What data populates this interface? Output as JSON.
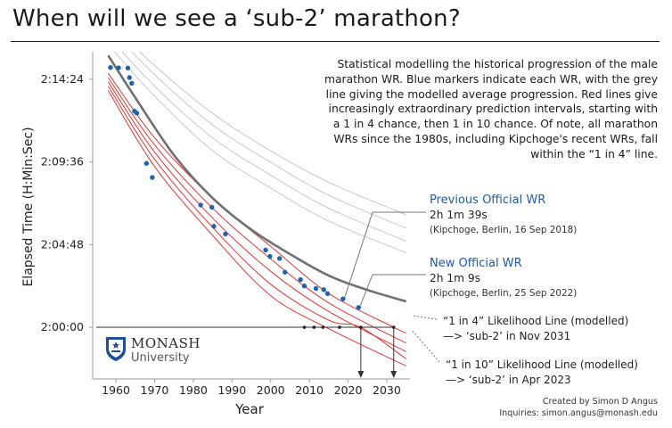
{
  "title": "When will we see a ‘sub-2’ marathon?",
  "description": "Statistical modelling the historical progression of the male marathon WR. Blue markers indicate each WR, with the grey line giving the modelled average progression. Red lines give increasingly extraordinary prediction intervals, starting with a 1 in 4 chance, then 1 in 10 chance. Of note, all marathon WRs since the 1980s, including Kipchoge's recent WRs, fall within the “1 in 4” line.",
  "annotations": {
    "previous": {
      "title": "Previous Official WR",
      "time": "2h 1m 39s",
      "detail": "(Kipchoge, Berlin, 16 Sep 2018)"
    },
    "new": {
      "title": "New Official WR",
      "time": "2h 1m 9s",
      "detail": "(Kipchoge, Berlin, 25 Sep 2022)"
    },
    "one_in_four": {
      "line1": "“1 in 4” Likelihood Line (modelled)",
      "line2": "—> ‘sub-2’ in Nov 2031"
    },
    "one_in_ten": {
      "line1": "“1 in 10” Likelihood Line (modelled)",
      "line2": "—> ‘sub-2’ in Apr 2023"
    }
  },
  "logo": {
    "name": "MONASH",
    "sub": "University"
  },
  "credits": {
    "line1": "Created by Simon D Angus",
    "line2": "Inquiries: simon.angus@monash.edu"
  },
  "colors": {
    "wr": "#1f63b0",
    "mean": "#707070",
    "upper": "#c8c8c8",
    "lower": "#d93a36",
    "axis": "#999999"
  },
  "chart_data": {
    "type": "scatter",
    "title": "When will we see a ‘sub-2’ marathon?",
    "xlabel": "Year",
    "ylabel": "Elapsed Time (H:Min:Sec)",
    "xlim": [
      1954,
      2036
    ],
    "ylim_seconds": [
      7020,
      8160
    ],
    "x_ticks": [
      1960,
      1970,
      1980,
      1990,
      2000,
      2010,
      2020,
      2030
    ],
    "y_ticks": [
      {
        "value": 7200,
        "label": "2:00:00"
      },
      {
        "value": 7488,
        "label": "2:04:48"
      },
      {
        "value": 7776,
        "label": "2:09:36"
      },
      {
        "value": 8064,
        "label": "2:14:24"
      }
    ],
    "world_records": [
      {
        "year": 1958.6,
        "time_s": 8105
      },
      {
        "year": 1960.7,
        "time_s": 8104
      },
      {
        "year": 1963.1,
        "time_s": 8103
      },
      {
        "year": 1963.5,
        "time_s": 8070
      },
      {
        "year": 1964.1,
        "time_s": 8050
      },
      {
        "year": 1964.8,
        "time_s": 7953
      },
      {
        "year": 1965.4,
        "time_s": 7946
      },
      {
        "year": 1967.9,
        "time_s": 7771
      },
      {
        "year": 1969.4,
        "time_s": 7722
      },
      {
        "year": 1981.9,
        "time_s": 7626
      },
      {
        "year": 1984.8,
        "time_s": 7618
      },
      {
        "year": 1985.3,
        "time_s": 7552
      },
      {
        "year": 1988.3,
        "time_s": 7525
      },
      {
        "year": 1998.7,
        "time_s": 7469
      },
      {
        "year": 1999.8,
        "time_s": 7447
      },
      {
        "year": 2002.3,
        "time_s": 7440
      },
      {
        "year": 2003.7,
        "time_s": 7392
      },
      {
        "year": 2007.7,
        "time_s": 7366
      },
      {
        "year": 2008.7,
        "time_s": 7344
      },
      {
        "year": 2011.7,
        "time_s": 7335
      },
      {
        "year": 2013.7,
        "time_s": 7331
      },
      {
        "year": 2014.7,
        "time_s": 7317
      },
      {
        "year": 2018.7,
        "time_s": 7299
      },
      {
        "year": 2022.7,
        "time_s": 7269
      }
    ],
    "model": {
      "mean": [
        [
          1958,
          8147
        ],
        [
          1965,
          8000
        ],
        [
          1975,
          7800
        ],
        [
          1985,
          7650
        ],
        [
          1995,
          7540
        ],
        [
          2005,
          7455
        ],
        [
          2015,
          7380
        ],
        [
          2025,
          7330
        ],
        [
          2035,
          7290
        ]
      ],
      "upper_intervals": [
        [
          [
            1958,
            8185
          ],
          [
            1970,
            8005
          ],
          [
            1985,
            7815
          ],
          [
            2000,
            7685
          ],
          [
            2015,
            7570
          ],
          [
            2035,
            7460
          ]
        ],
        [
          [
            1958,
            8215
          ],
          [
            1970,
            8040
          ],
          [
            1985,
            7860
          ],
          [
            2000,
            7730
          ],
          [
            2015,
            7615
          ],
          [
            2035,
            7500
          ]
        ],
        [
          [
            1958,
            8248
          ],
          [
            1970,
            8080
          ],
          [
            1985,
            7905
          ],
          [
            2000,
            7775
          ],
          [
            2015,
            7660
          ],
          [
            2035,
            7545
          ]
        ],
        [
          [
            1958,
            8270
          ],
          [
            1970,
            8112
          ],
          [
            1985,
            7945
          ],
          [
            2000,
            7815
          ],
          [
            2015,
            7705
          ],
          [
            2035,
            7592
          ]
        ]
      ],
      "lower_intervals": [
        [
          [
            1958,
            8085
          ],
          [
            1970,
            7860
          ],
          [
            1985,
            7650
          ],
          [
            2000,
            7482
          ],
          [
            2015,
            7318
          ],
          [
            2031.8,
            7200
          ],
          [
            2035,
            7180
          ]
        ],
        [
          [
            1958,
            8070
          ],
          [
            1970,
            7835
          ],
          [
            1985,
            7615
          ],
          [
            2000,
            7438
          ],
          [
            2015,
            7285
          ],
          [
            2035,
            7145
          ]
        ],
        [
          [
            1958,
            8055
          ],
          [
            1970,
            7810
          ],
          [
            1985,
            7580
          ],
          [
            2000,
            7395
          ],
          [
            2015,
            7255
          ],
          [
            2035,
            7115
          ]
        ],
        [
          [
            1958,
            8040
          ],
          [
            1970,
            7785
          ],
          [
            1985,
            7548
          ],
          [
            2000,
            7350
          ],
          [
            2015,
            7225
          ],
          [
            2023.3,
            7200
          ],
          [
            2035,
            7090
          ]
        ],
        [
          [
            1958,
            8025
          ],
          [
            1970,
            7760
          ],
          [
            1985,
            7520
          ],
          [
            2000,
            7310
          ],
          [
            2015,
            7195
          ],
          [
            2035,
            7065
          ]
        ]
      ]
    },
    "sub2_reference": {
      "time_s": 7200,
      "label": "2:00:00",
      "crossing_dots": [
        2008.7,
        2011.2,
        2013.5,
        2017.8,
        2023.3,
        2031.8
      ],
      "arrows": [
        2023.3,
        2031.8
      ]
    }
  }
}
